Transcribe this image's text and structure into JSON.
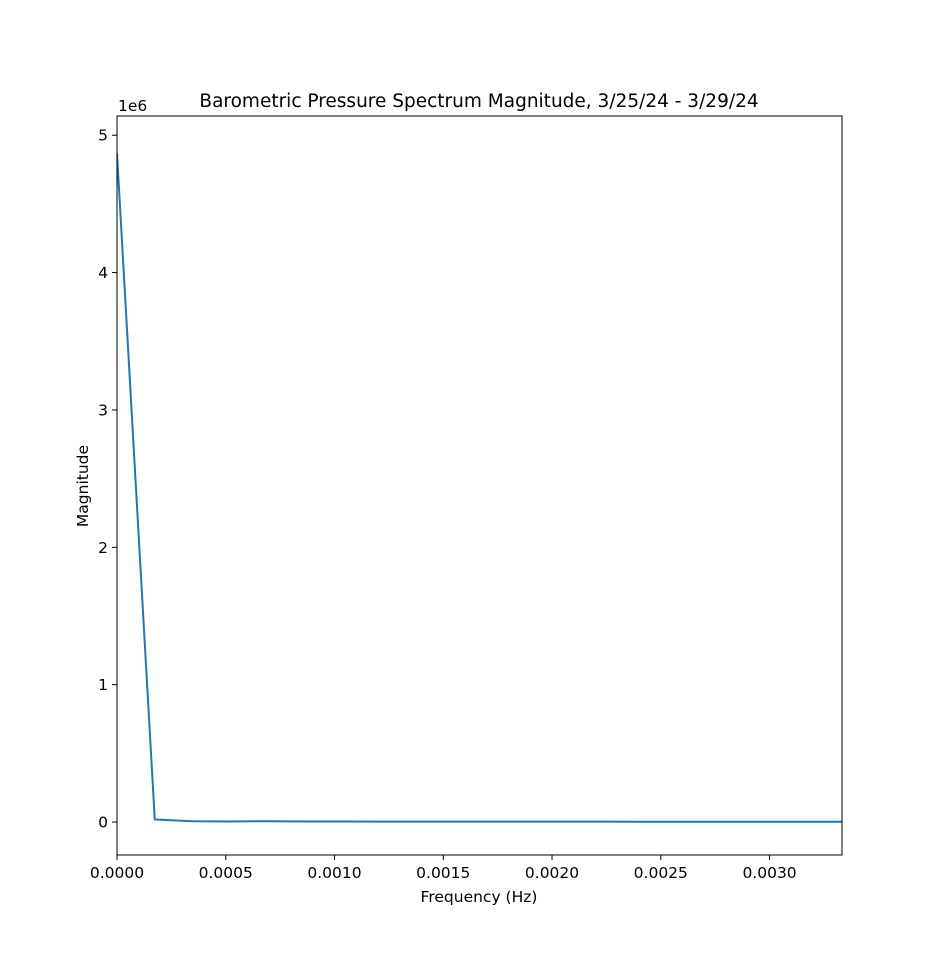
{
  "chart_data": {
    "type": "line",
    "title": "Barometric Pressure Spectrum Magnitude, 3/25/24 - 3/29/24",
    "xlabel": "Frequency (Hz)",
    "ylabel": "Magnitude",
    "y_offset_label": "1e6",
    "xlim": [
      0,
      0.003333
    ],
    "ylim": [
      -0.24,
      5.14
    ],
    "x_ticks": [
      0,
      0.0005,
      0.001,
      0.0015,
      0.002,
      0.0025,
      0.003
    ],
    "x_tick_labels": [
      "0.0000",
      "0.0005",
      "0.0010",
      "0.0015",
      "0.0020",
      "0.0025",
      "0.0030"
    ],
    "y_ticks": [
      0,
      1,
      2,
      3,
      4,
      5
    ],
    "y_tick_labels": [
      "0",
      "1",
      "2",
      "3",
      "4",
      "5"
    ],
    "grid": false,
    "series": [
      {
        "color": "#1f77b4",
        "x": [
          0,
          0.0001736,
          0.0003472,
          0.0005208,
          0.0006944,
          0.000868,
          0.0010417,
          0.0012153,
          0.0013889,
          0.0015625,
          0.0017361,
          0.0019097,
          0.0020833,
          0.0022569,
          0.0024306,
          0.0026042,
          0.0027778,
          0.0029514,
          0.003125,
          0.0032986,
          0.003333
        ],
        "y": [
          4.87,
          0.018,
          0.006,
          0.004,
          0.006,
          0.004,
          0.004,
          0.003,
          0.003,
          0.003,
          0.003,
          0.003,
          0.003,
          0.003,
          0.002,
          0.002,
          0.002,
          0.002,
          0.002,
          0.002,
          0.002
        ]
      }
    ]
  }
}
